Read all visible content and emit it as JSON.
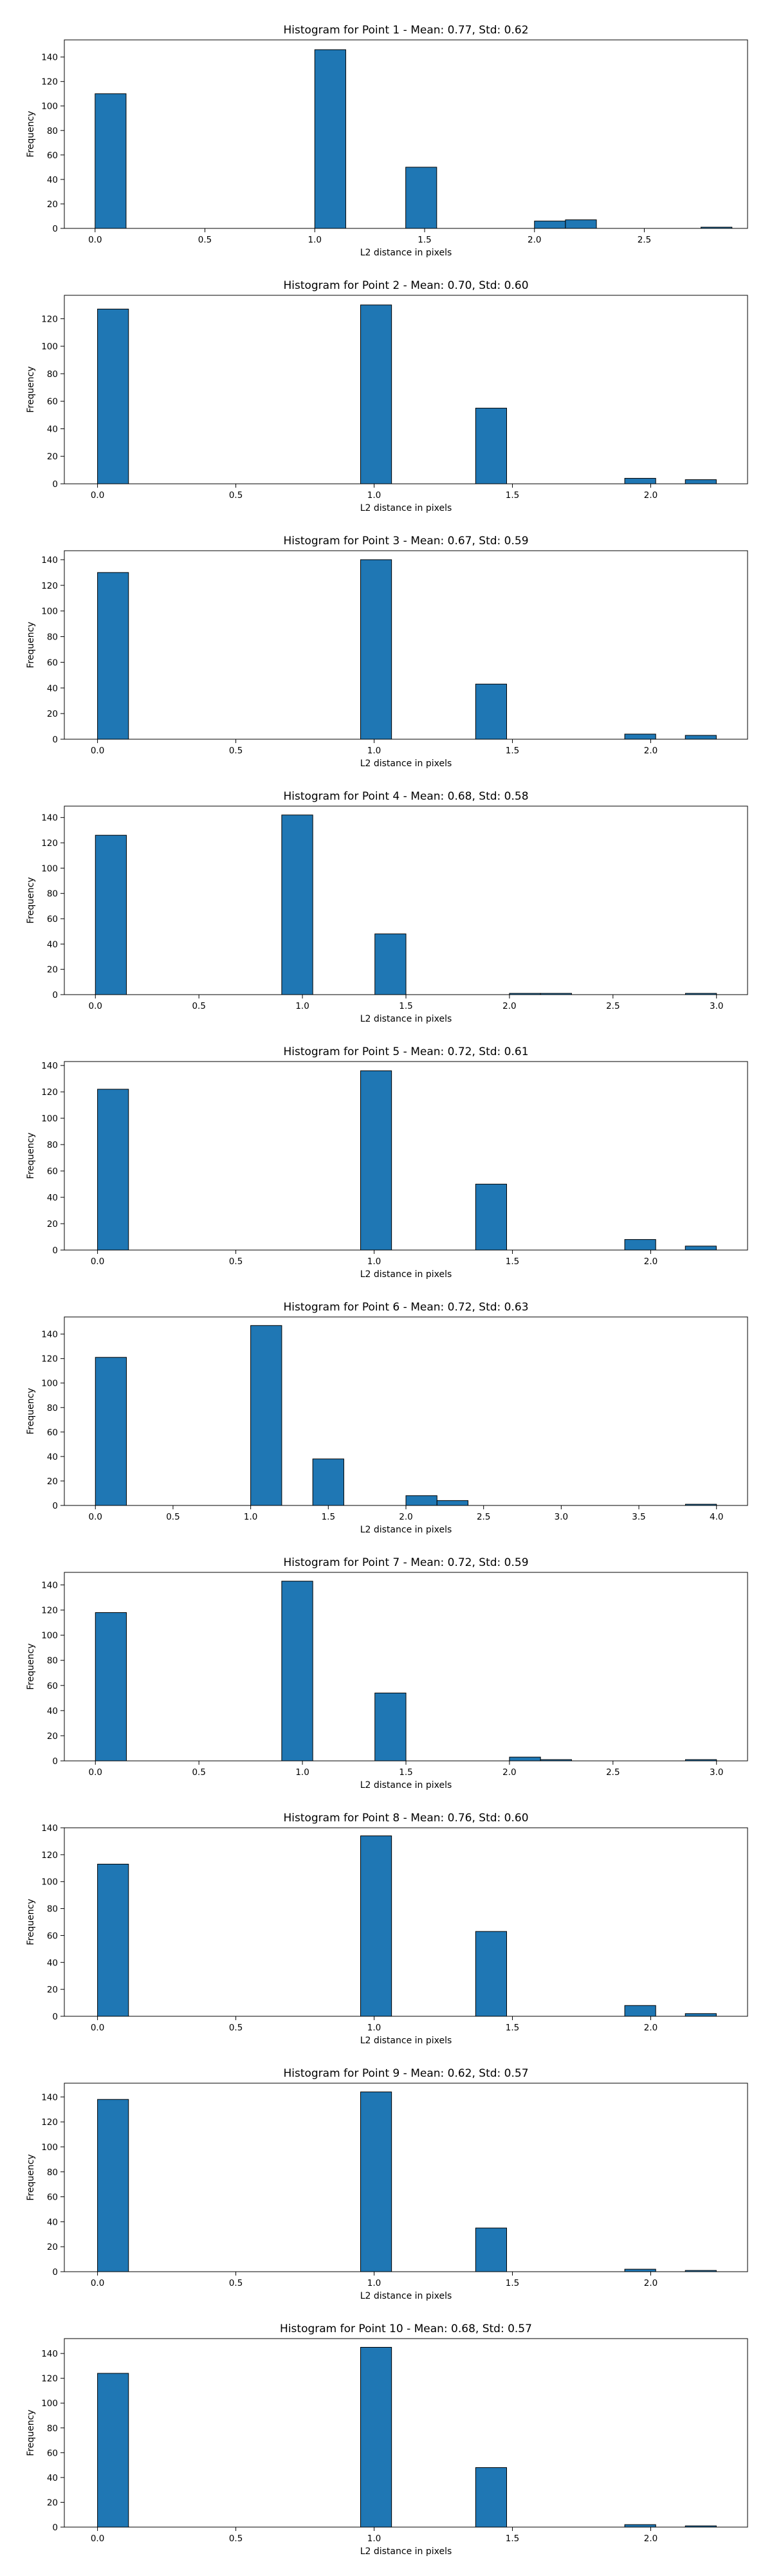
{
  "chart_data": [
    {
      "type": "bar",
      "title": "Histogram for Point 1 - Mean: 0.77, Std: 0.62",
      "xlabel": "L2 distance in pixels",
      "ylabel": "Frequency",
      "xlim": [
        -0.14,
        2.97
      ],
      "ylim": [
        0,
        154
      ],
      "xticks": [
        0.0,
        0.5,
        1.0,
        1.5,
        2.0,
        2.5
      ],
      "yticks": [
        0,
        20,
        40,
        60,
        80,
        100,
        120,
        140
      ],
      "bin_width": 0.141,
      "bins": [
        {
          "x": 0.0,
          "count": 110
        },
        {
          "x": 1.0,
          "count": 146
        },
        {
          "x": 1.414,
          "count": 50
        },
        {
          "x": 2.0,
          "count": 6
        },
        {
          "x": 2.141,
          "count": 7
        },
        {
          "x": 2.758,
          "count": 1
        }
      ]
    },
    {
      "type": "bar",
      "title": "Histogram for Point 2 - Mean: 0.70, Std: 0.60",
      "xlabel": "L2 distance in pixels",
      "ylabel": "Frequency",
      "xlim": [
        -0.12,
        2.35
      ],
      "ylim": [
        0,
        137
      ],
      "xticks": [
        0.0,
        0.5,
        1.0,
        1.5,
        2.0
      ],
      "yticks": [
        0,
        20,
        40,
        60,
        80,
        100,
        120
      ],
      "bin_width": 0.112,
      "bins": [
        {
          "x": 0.0,
          "count": 127
        },
        {
          "x": 0.951,
          "count": 130
        },
        {
          "x": 1.367,
          "count": 55
        },
        {
          "x": 1.906,
          "count": 4
        },
        {
          "x": 2.125,
          "count": 3
        }
      ]
    },
    {
      "type": "bar",
      "title": "Histogram for Point 3 - Mean: 0.67, Std: 0.59",
      "xlabel": "L2 distance in pixels",
      "ylabel": "Frequency",
      "xlim": [
        -0.12,
        2.35
      ],
      "ylim": [
        0,
        147
      ],
      "xticks": [
        0.0,
        0.5,
        1.0,
        1.5,
        2.0
      ],
      "yticks": [
        0,
        20,
        40,
        60,
        80,
        100,
        120,
        140
      ],
      "bin_width": 0.112,
      "bins": [
        {
          "x": 0.0,
          "count": 130
        },
        {
          "x": 0.951,
          "count": 140
        },
        {
          "x": 1.367,
          "count": 43
        },
        {
          "x": 1.906,
          "count": 4
        },
        {
          "x": 2.125,
          "count": 3
        }
      ]
    },
    {
      "type": "bar",
      "title": "Histogram for Point 4 - Mean: 0.68, Std: 0.58",
      "xlabel": "L2 distance in pixels",
      "ylabel": "Frequency",
      "xlim": [
        -0.15,
        3.15
      ],
      "ylim": [
        0,
        149
      ],
      "xticks": [
        0.0,
        0.5,
        1.0,
        1.5,
        2.0,
        2.5,
        3.0
      ],
      "yticks": [
        0,
        20,
        40,
        60,
        80,
        100,
        120,
        140
      ],
      "bin_width": 0.15,
      "bins": [
        {
          "x": 0.0,
          "count": 126
        },
        {
          "x": 0.9,
          "count": 142
        },
        {
          "x": 1.35,
          "count": 48
        },
        {
          "x": 2.0,
          "count": 1
        },
        {
          "x": 2.15,
          "count": 1
        },
        {
          "x": 2.85,
          "count": 1
        }
      ]
    },
    {
      "type": "bar",
      "title": "Histogram for Point 5 - Mean: 0.72, Std: 0.61",
      "xlabel": "L2 distance in pixels",
      "ylabel": "Frequency",
      "xlim": [
        -0.12,
        2.35
      ],
      "ylim": [
        0,
        143
      ],
      "xticks": [
        0.0,
        0.5,
        1.0,
        1.5,
        2.0
      ],
      "yticks": [
        0,
        20,
        40,
        60,
        80,
        100,
        120,
        140
      ],
      "bin_width": 0.112,
      "bins": [
        {
          "x": 0.0,
          "count": 122
        },
        {
          "x": 0.951,
          "count": 136
        },
        {
          "x": 1.367,
          "count": 50
        },
        {
          "x": 1.906,
          "count": 8
        },
        {
          "x": 2.125,
          "count": 3
        }
      ]
    },
    {
      "type": "bar",
      "title": "Histogram for Point 6 - Mean: 0.72, Std: 0.63",
      "xlabel": "L2 distance in pixels",
      "ylabel": "Frequency",
      "xlim": [
        -0.2,
        4.2
      ],
      "ylim": [
        0,
        154
      ],
      "xticks": [
        0.0,
        0.5,
        1.0,
        1.5,
        2.0,
        2.5,
        3.0,
        3.5,
        4.0
      ],
      "yticks": [
        0,
        20,
        40,
        60,
        80,
        100,
        120,
        140
      ],
      "bin_width": 0.2,
      "bins": [
        {
          "x": 0.0,
          "count": 121
        },
        {
          "x": 1.0,
          "count": 147
        },
        {
          "x": 1.4,
          "count": 38
        },
        {
          "x": 2.0,
          "count": 8
        },
        {
          "x": 2.2,
          "count": 4
        },
        {
          "x": 3.8,
          "count": 1
        }
      ]
    },
    {
      "type": "bar",
      "title": "Histogram for Point 7 - Mean: 0.72, Std: 0.59",
      "xlabel": "L2 distance in pixels",
      "ylabel": "Frequency",
      "xlim": [
        -0.15,
        3.15
      ],
      "ylim": [
        0,
        150
      ],
      "xticks": [
        0.0,
        0.5,
        1.0,
        1.5,
        2.0,
        2.5,
        3.0
      ],
      "yticks": [
        0,
        20,
        40,
        60,
        80,
        100,
        120,
        140
      ],
      "bin_width": 0.15,
      "bins": [
        {
          "x": 0.0,
          "count": 118
        },
        {
          "x": 0.9,
          "count": 143
        },
        {
          "x": 1.35,
          "count": 54
        },
        {
          "x": 2.0,
          "count": 3
        },
        {
          "x": 2.15,
          "count": 1
        },
        {
          "x": 2.85,
          "count": 1
        }
      ]
    },
    {
      "type": "bar",
      "title": "Histogram for Point 8 - Mean: 0.76, Std: 0.60",
      "xlabel": "L2 distance in pixels",
      "ylabel": "Frequency",
      "xlim": [
        -0.12,
        2.35
      ],
      "ylim": [
        0,
        140
      ],
      "xticks": [
        0.0,
        0.5,
        1.0,
        1.5,
        2.0
      ],
      "yticks": [
        0,
        20,
        40,
        60,
        80,
        100,
        120,
        140
      ],
      "bin_width": 0.112,
      "bins": [
        {
          "x": 0.0,
          "count": 113
        },
        {
          "x": 0.951,
          "count": 134
        },
        {
          "x": 1.367,
          "count": 63
        },
        {
          "x": 1.906,
          "count": 8
        },
        {
          "x": 2.125,
          "count": 2
        }
      ]
    },
    {
      "type": "bar",
      "title": "Histogram for Point 9 - Mean: 0.62, Std: 0.57",
      "xlabel": "L2 distance in pixels",
      "ylabel": "Frequency",
      "xlim": [
        -0.12,
        2.35
      ],
      "ylim": [
        0,
        151
      ],
      "xticks": [
        0.0,
        0.5,
        1.0,
        1.5,
        2.0
      ],
      "yticks": [
        0,
        20,
        40,
        60,
        80,
        100,
        120,
        140
      ],
      "bin_width": 0.112,
      "bins": [
        {
          "x": 0.0,
          "count": 138
        },
        {
          "x": 0.951,
          "count": 144
        },
        {
          "x": 1.367,
          "count": 35
        },
        {
          "x": 1.906,
          "count": 2
        },
        {
          "x": 2.125,
          "count": 1
        }
      ]
    },
    {
      "type": "bar",
      "title": "Histogram for Point 10 - Mean: 0.68, Std: 0.57",
      "xlabel": "L2 distance in pixels",
      "ylabel": "Frequency",
      "xlim": [
        -0.12,
        2.35
      ],
      "ylim": [
        0,
        152
      ],
      "xticks": [
        0.0,
        0.5,
        1.0,
        1.5,
        2.0
      ],
      "yticks": [
        0,
        20,
        40,
        60,
        80,
        100,
        120,
        140
      ],
      "bin_width": 0.112,
      "bins": [
        {
          "x": 0.0,
          "count": 124
        },
        {
          "x": 0.951,
          "count": 145
        },
        {
          "x": 1.367,
          "count": 48
        },
        {
          "x": 1.906,
          "count": 2
        },
        {
          "x": 2.125,
          "count": 1
        }
      ]
    }
  ]
}
